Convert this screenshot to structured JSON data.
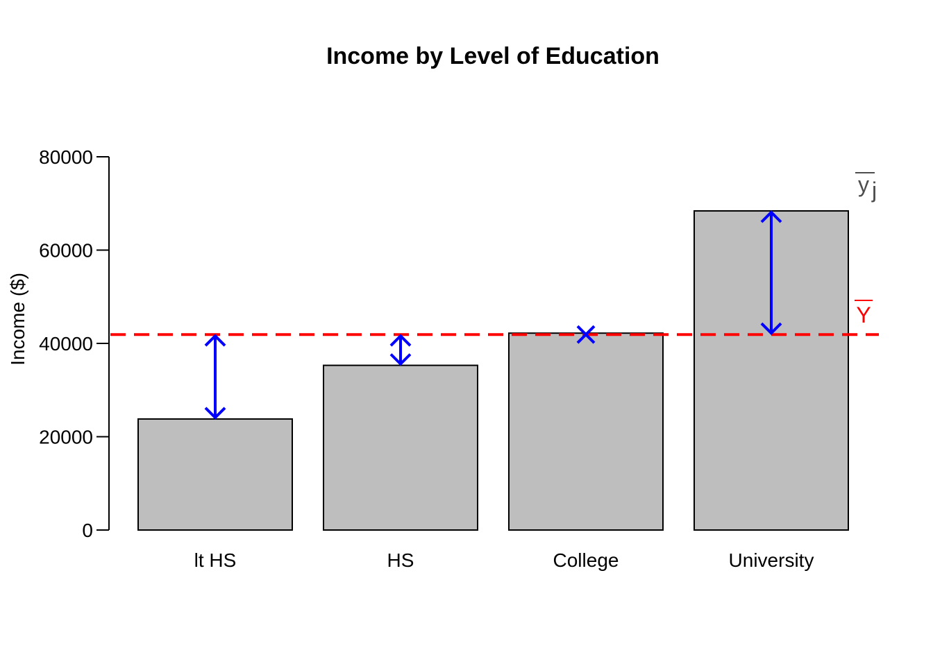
{
  "chart_data": {
    "type": "bar",
    "title": "Income by Level of Education",
    "xlabel": "",
    "ylabel": "Income ($)",
    "categories": [
      "lt HS",
      "HS",
      "College",
      "University"
    ],
    "values": [
      23800,
      35300,
      42200,
      68400
    ],
    "ylim": [
      0,
      80000
    ],
    "yticks": [
      0,
      20000,
      40000,
      60000,
      80000
    ],
    "grand_mean": 41900,
    "grid": false,
    "legend": "none",
    "annotations": {
      "group_mean_label": "y",
      "group_mean_subscript": "j",
      "grand_mean_label": "Y"
    },
    "colors": {
      "bar_fill": "#bebebe",
      "bar_stroke": "#000000",
      "mean_line": "#ff0000",
      "arrows": "#0000ff",
      "group_label": "#4d4d4d"
    }
  }
}
